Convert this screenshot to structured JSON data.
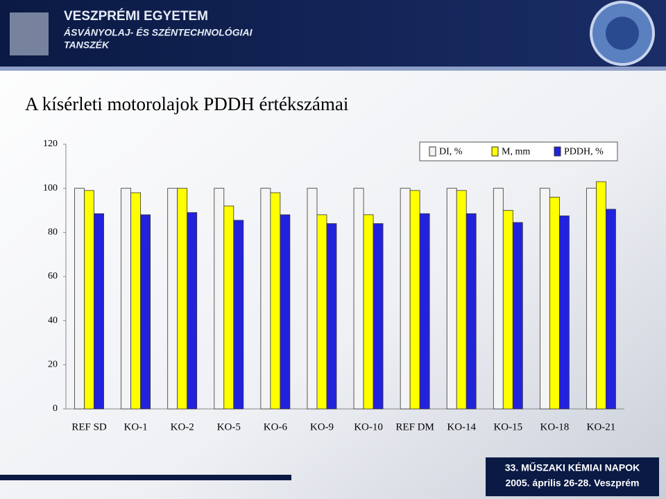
{
  "header": {
    "university": "VESZPRÉMI EGYETEM",
    "department_line1": "ÁSVÁNYOLAJ- ÉS SZÉNTECHNOLÓGIAI",
    "department_line2": "TANSZÉK"
  },
  "footer": {
    "event": "33. MŰSZAKI KÉMIAI NAPOK",
    "date": "2005. április 26-28. Veszprém"
  },
  "chart_data": {
    "type": "bar",
    "title": "A kísérleti motorolajok PDDH értékszámai",
    "categories": [
      "REF SD",
      "KO-1",
      "KO-2",
      "KO-5",
      "KO-6",
      "KO-9",
      "KO-10",
      "REF DM",
      "KO-14",
      "KO-15",
      "KO-18",
      "KO-21"
    ],
    "series": [
      {
        "name": "DI, %",
        "color": "#f4f4f4",
        "values": [
          100,
          100,
          100,
          100,
          100,
          100,
          100,
          100,
          100,
          100,
          100,
          100
        ]
      },
      {
        "name": "M, mm",
        "color": "#ffff00",
        "values": [
          99,
          98,
          100,
          92,
          98,
          88,
          88,
          99,
          99,
          90,
          96,
          103
        ]
      },
      {
        "name": "PDDH, %",
        "color": "#2222dd",
        "values": [
          88.5,
          88,
          89,
          85.5,
          88,
          84,
          84,
          88.5,
          88.5,
          84.5,
          87.5,
          90.5
        ]
      }
    ],
    "ylim": [
      0,
      120
    ],
    "yticks": [
      0,
      20,
      40,
      60,
      80,
      100,
      120
    ],
    "grid": false,
    "legend": "top-right"
  }
}
